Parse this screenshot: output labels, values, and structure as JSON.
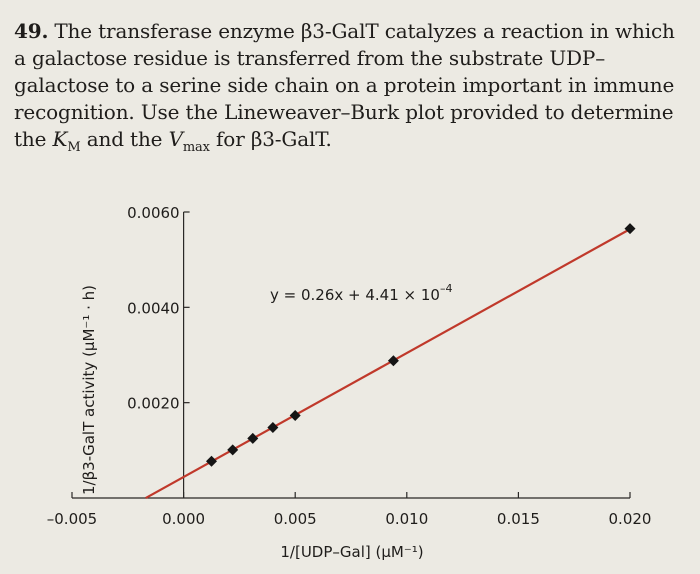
{
  "question": {
    "number": "49.",
    "part1": "The transferase enzyme β3-GalT catalyzes a reaction in which a galactose residue is transferred from the substrate UDP–galactose to a serine side chain on a protein important in immune recognition. Use the Lineweaver–Burk plot provided to determine the ",
    "km_symbol": "K",
    "km_sub": "M",
    "and": " and the ",
    "vmax_symbol": "V",
    "vmax_sub": "max",
    "part2": " for β3-GalT."
  },
  "chart_data": {
    "type": "scatter",
    "title": "",
    "xlabel": "1/[UDP–Gal] (μM⁻¹)",
    "ylabel": "1/β3-GalT activity (μM⁻¹ · h)",
    "xlim": [
      -0.005,
      0.02
    ],
    "ylim": [
      0,
      0.006
    ],
    "x_ticks": [
      -0.005,
      0.0,
      0.005,
      0.01,
      0.015,
      0.02
    ],
    "x_tick_labels": [
      "–0.005",
      "0.000",
      "0.005",
      "0.010",
      "0.015",
      "0.020"
    ],
    "y_ticks": [
      0.002,
      0.004,
      0.006
    ],
    "y_tick_labels": [
      "0.0020",
      "0.0040",
      "0.0060"
    ],
    "points": {
      "x": [
        0.00125,
        0.0022,
        0.0031,
        0.004,
        0.005,
        0.0094,
        0.02
      ],
      "y": [
        0.00077,
        0.00101,
        0.00125,
        0.00148,
        0.00173,
        0.00288,
        0.00565
      ]
    },
    "fit_line": {
      "slope": 0.26,
      "intercept": 0.000441,
      "x_range": [
        -0.0017,
        0.02
      ],
      "color": "#c0392b"
    },
    "annotation": "y = 0.26x + 4.41 × 10",
    "annotation_exp": "–4",
    "grid": false,
    "legend": "none",
    "marker_color": "#151515"
  }
}
